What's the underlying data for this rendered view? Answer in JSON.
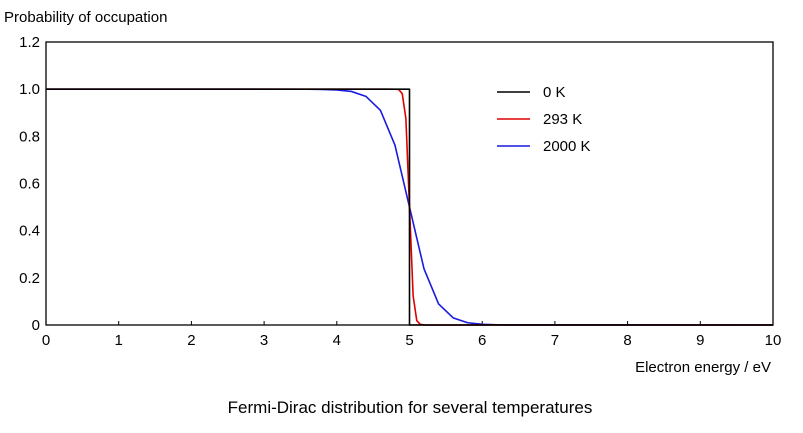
{
  "chart_data": {
    "type": "line",
    "title": "",
    "caption": "Fermi-Dirac distribution for several temperatures",
    "xlabel": "Electron energy / eV",
    "ylabel": "Probability of occupation",
    "xlim": [
      0,
      10
    ],
    "ylim": [
      0,
      1.2
    ],
    "x_ticks": [
      0,
      1,
      2,
      3,
      4,
      5,
      6,
      7,
      8,
      9,
      10
    ],
    "y_ticks": [
      {
        "value": 0,
        "label": "0"
      },
      {
        "value": 0.2,
        "label": "0.2"
      },
      {
        "value": 0.4,
        "label": "0.4"
      },
      {
        "value": 0.6,
        "label": "0.6"
      },
      {
        "value": 0.8,
        "label": "0.8"
      },
      {
        "value": 1.0,
        "label": "1.0"
      },
      {
        "value": 1.2,
        "label": "1.2"
      }
    ],
    "grid": false,
    "legend_position": "top-right",
    "fermi_energy": 5,
    "series": [
      {
        "name": "0 K",
        "color": "#000000",
        "x": [
          0,
          5,
          5,
          10
        ],
        "y": [
          1,
          1,
          0,
          0
        ]
      },
      {
        "name": "293 K",
        "color": "#e00000",
        "x": [
          0,
          4.7,
          4.8,
          4.85,
          4.9,
          4.95,
          5.0,
          5.05,
          5.1,
          5.15,
          5.2,
          5.3,
          10
        ],
        "y": [
          1,
          0.9999,
          0.9996,
          0.9986,
          0.9815,
          0.876,
          0.5,
          0.124,
          0.0185,
          0.0026,
          0.0004,
          0.0,
          0
        ]
      },
      {
        "name": "2000 K",
        "color": "#1a1adf",
        "x": [
          0,
          3.6,
          3.8,
          4.0,
          4.2,
          4.4,
          4.6,
          4.8,
          5.0,
          5.2,
          5.4,
          5.6,
          5.8,
          6.0,
          6.2,
          6.4,
          10
        ],
        "y": [
          1,
          0.9997,
          0.999,
          0.9969,
          0.9904,
          0.9696,
          0.9105,
          0.7624,
          0.5,
          0.2376,
          0.0895,
          0.0304,
          0.0096,
          0.0031,
          0.001,
          0.0003,
          0
        ]
      }
    ]
  }
}
